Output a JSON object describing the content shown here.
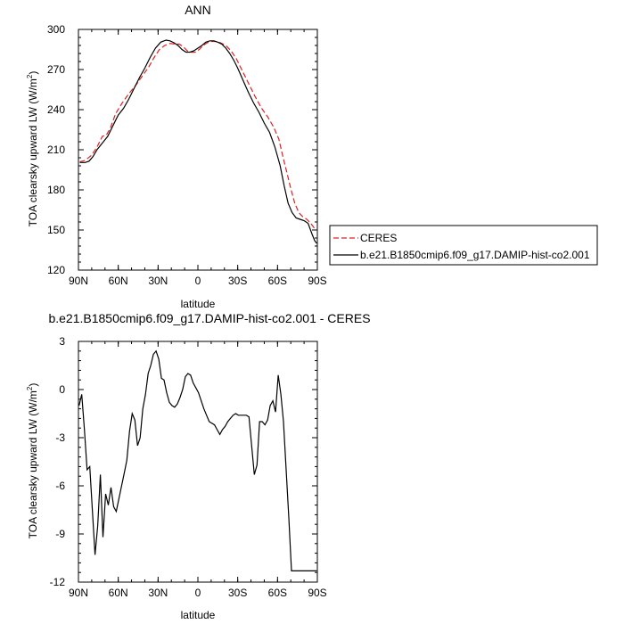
{
  "chart_data": [
    {
      "type": "line",
      "title": "ANN",
      "xlabel": "latitude",
      "ylabel": "TOA clearsky upward LW (W/m",
      "ylabel_sup": "2",
      "ylabel_end": ")",
      "xlim": [
        90,
        -90
      ],
      "ylim": [
        120,
        300
      ],
      "xticks": [
        90,
        60,
        30,
        0,
        -30,
        -60,
        -90
      ],
      "xtick_labels": [
        "90N",
        "60N",
        "30N",
        "0",
        "30S",
        "60S",
        "90S"
      ],
      "yticks": [
        120,
        150,
        180,
        210,
        240,
        270,
        300
      ],
      "ytick_labels": [
        "120",
        "150",
        "180",
        "210",
        "240",
        "270",
        "300"
      ],
      "legend_position": "right",
      "series": [
        {
          "name": "CERES",
          "color": "#e02020",
          "dash": "dashed",
          "x": [
            89,
            85,
            80,
            76,
            72,
            69,
            66,
            62,
            57,
            52,
            47,
            42,
            37,
            33,
            29,
            25,
            21,
            17,
            14,
            11,
            8,
            5,
            2,
            -1,
            -4,
            -7,
            -10,
            -13,
            -17,
            -21,
            -25,
            -29,
            -33,
            -38,
            -43,
            -48,
            -53,
            -57,
            -61,
            -64,
            -67,
            -70,
            -73,
            -76,
            -79,
            -82,
            -85,
            -88,
            -89
          ],
          "y": [
            201,
            202,
            206,
            212,
            220,
            221,
            226,
            237,
            245,
            252,
            258,
            265,
            272,
            279,
            285,
            288,
            289.5,
            289,
            289,
            287,
            284,
            283,
            283,
            285,
            288,
            290,
            291,
            291,
            290,
            288,
            284,
            278,
            270,
            260,
            250,
            241,
            234,
            227,
            218,
            205,
            193,
            181,
            170,
            163,
            160,
            158,
            155,
            151,
            150
          ]
        },
        {
          "name": "b.e21.B1850cmip6.f09_g17.DAMIP-hist-co2.001",
          "color": "#000000",
          "dash": "solid",
          "x": [
            89,
            85,
            82,
            79,
            76,
            72,
            68,
            64,
            60,
            56,
            52,
            48,
            44,
            40,
            36,
            32,
            28,
            24,
            21,
            18,
            15,
            12,
            9,
            6,
            3,
            0,
            -3,
            -6,
            -9,
            -12,
            -15,
            -18,
            -21,
            -24,
            -27,
            -30,
            -34,
            -38,
            -42,
            -46,
            -50,
            -54,
            -58,
            -62,
            -65,
            -68,
            -71,
            -74,
            -77,
            -80,
            -83,
            -86,
            -88,
            -89.5
          ],
          "y": [
            200.5,
            200.5,
            201.5,
            205,
            210,
            215,
            220,
            228,
            236,
            241,
            248,
            256,
            264,
            271,
            279,
            286,
            290.5,
            292,
            291.5,
            290,
            288,
            285,
            283,
            283,
            284,
            286,
            288,
            290.5,
            291.5,
            291.5,
            290.5,
            289,
            286,
            282,
            277,
            271,
            262,
            253,
            245,
            238,
            230,
            223,
            212,
            198,
            183,
            170,
            163,
            159,
            158,
            157,
            155,
            147,
            142,
            140
          ]
        }
      ]
    },
    {
      "type": "line",
      "title": "b.e21.B1850cmip6.f09_g17.DAMIP-hist-co2.001 - CERES",
      "xlabel": "latitude",
      "ylabel": "TOA clearsky upward LW (W/m",
      "ylabel_sup": "2",
      "ylabel_end": ")",
      "xlim": [
        90,
        -90
      ],
      "ylim": [
        -12,
        3
      ],
      "xticks": [
        90,
        60,
        30,
        0,
        -30,
        -60,
        -90
      ],
      "xtick_labels": [
        "90N",
        "60N",
        "30N",
        "0",
        "30S",
        "60S",
        "90S"
      ],
      "yticks": [
        -12,
        -9,
        -6,
        -3,
        0,
        3
      ],
      "ytick_labels": [
        "-12",
        "-9",
        "-6",
        "-3",
        "0",
        "3"
      ],
      "series": [
        {
          "color": "#000000",
          "dash": "solid",
          "x": [
            89.5,
            87.5,
            85.5,
            83.5,
            81.5,
            79.5,
            77.5,
            75.5,
            73.5,
            71.5,
            69.5,
            67.5,
            65.5,
            63.5,
            61.5,
            59.5,
            57.5,
            55.5,
            53.5,
            51.5,
            49.5,
            47.5,
            45.5,
            43.5,
            41.5,
            39.5,
            37.5,
            35.5,
            33.5,
            31.5,
            29.5,
            27.5,
            25.5,
            23.5,
            21.5,
            19.5,
            17.5,
            15.5,
            13.5,
            11.5,
            9.5,
            7.5,
            5.5,
            3.5,
            1.5,
            -0.5,
            -2.5,
            -4.5,
            -6.5,
            -8.5,
            -10.5,
            -12.5,
            -14.5,
            -16.5,
            -18.5,
            -20.5,
            -22.5,
            -24.5,
            -26.5,
            -28.5,
            -30.5,
            -32.5,
            -34.5,
            -36.5,
            -38.5,
            -40.5,
            -42.5,
            -44.5,
            -46.5,
            -48.5,
            -50.5,
            -52.5,
            -54.5,
            -56.5,
            -58.5,
            -60.5,
            -62.5,
            -64.5,
            -66.5,
            -68.5,
            -70.5,
            -72.5,
            -74.5,
            -76.5,
            -78.5,
            -80.5,
            -82.5,
            -84.5,
            -86.5,
            -88.5,
            -89.5
          ],
          "y": [
            -1,
            -0.3,
            -2.5,
            -5,
            -4.8,
            -7.5,
            -10.3,
            -8.5,
            -5.3,
            -9.2,
            -6.5,
            -7.2,
            -6.1,
            -7.3,
            -7.6,
            -6.8,
            -6.0,
            -5.2,
            -4.4,
            -2.6,
            -1.5,
            -1.9,
            -3.5,
            -3.0,
            -1.2,
            -0.3,
            1.0,
            1.5,
            2.2,
            2.4,
            1.9,
            0.7,
            0.6,
            -0.2,
            -0.8,
            -1.0,
            -1.1,
            -0.9,
            -0.5,
            0.0,
            0.8,
            1.0,
            0.9,
            0.4,
            0.1,
            -0.2,
            -0.7,
            -1.2,
            -1.6,
            -2.0,
            -2.1,
            -2.2,
            -2.5,
            -2.8,
            -2.5,
            -2.3,
            -2.0,
            -1.8,
            -1.6,
            -1.5,
            -1.6,
            -1.6,
            -1.6,
            -1.6,
            -1.7,
            -3.5,
            -5.3,
            -4.7,
            -2.0,
            -2.0,
            -2.2,
            -1.9,
            -1.0,
            -0.7,
            -1.4,
            0.9,
            -0.3,
            -2.0,
            -5.0,
            -8.0,
            -11.3,
            -11.3,
            -11.3,
            -11.3,
            -11.3,
            -11.3,
            -11.3,
            -11.3,
            -11.3,
            -11.3,
            -11.3
          ]
        }
      ]
    }
  ]
}
